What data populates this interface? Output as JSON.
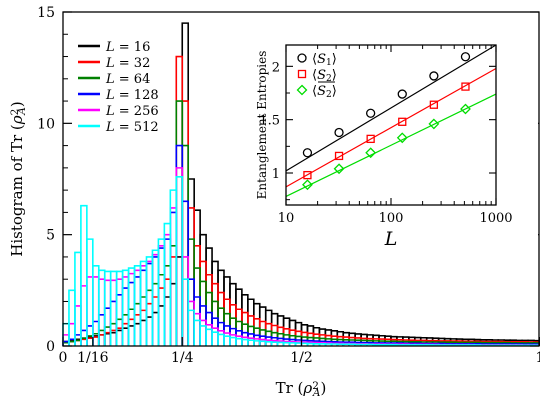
{
  "chart_data": [
    {
      "type": "histogram",
      "xlabel": "Tr (ρ_A²)",
      "ylabel": "Histogram of Tr (ρ_A²)",
      "xlim": [
        0,
        1
      ],
      "ylim": [
        0,
        15
      ],
      "x_ticks": [
        {
          "value": 0,
          "label": "0"
        },
        {
          "value": 0.0625,
          "label": "1/16"
        },
        {
          "value": 0.25,
          "label": "1/4"
        },
        {
          "value": 0.5,
          "label": "1/2"
        },
        {
          "value": 1,
          "label": "1"
        }
      ],
      "y_ticks": [
        0,
        5,
        10,
        15
      ],
      "legend_position": "top-left",
      "bin_width": 0.0125,
      "series": [
        {
          "name": "L = 16",
          "color": "#000000",
          "values": [
            0.2,
            0.25,
            0.3,
            0.35,
            0.4,
            0.45,
            0.5,
            0.55,
            0.6,
            0.7,
            0.8,
            0.9,
            1.0,
            1.15,
            1.3,
            1.5,
            1.8,
            2.2,
            2.8,
            4.0,
            14.5,
            7.5,
            6.1,
            5.0,
            4.4,
            3.8,
            3.4,
            3.1,
            2.8,
            2.55,
            2.3,
            2.1,
            1.9,
            1.75,
            1.6,
            1.45,
            1.35,
            1.25,
            1.15,
            1.05,
            0.95,
            0.9,
            0.82,
            0.76,
            0.72,
            0.68,
            0.64,
            0.6,
            0.57,
            0.54,
            0.52,
            0.5,
            0.48,
            0.46,
            0.44,
            0.42,
            0.41,
            0.4,
            0.39,
            0.38,
            0.37,
            0.36,
            0.35,
            0.34,
            0.33,
            0.32,
            0.31,
            0.3,
            0.3,
            0.29,
            0.28,
            0.28,
            0.27,
            0.27,
            0.26,
            0.26,
            0.25,
            0.25,
            0.25,
            0.24
          ]
        },
        {
          "name": "L = 32",
          "color": "#ff0000",
          "values": [
            0.15,
            0.2,
            0.25,
            0.3,
            0.35,
            0.4,
            0.5,
            0.6,
            0.7,
            0.8,
            1.0,
            1.2,
            1.4,
            1.6,
            1.9,
            2.2,
            2.6,
            3.0,
            4.0,
            13.0,
            11.0,
            6.2,
            4.5,
            3.8,
            3.2,
            2.8,
            2.4,
            2.1,
            1.85,
            1.65,
            1.5,
            1.35,
            1.22,
            1.1,
            1.0,
            0.92,
            0.84,
            0.77,
            0.71,
            0.66,
            0.61,
            0.57,
            0.53,
            0.5,
            0.47,
            0.44,
            0.42,
            0.4,
            0.38,
            0.36,
            0.34,
            0.33,
            0.32,
            0.31,
            0.3,
            0.29,
            0.28,
            0.27,
            0.26,
            0.25,
            0.25,
            0.24,
            0.24,
            0.23,
            0.23,
            0.22,
            0.22,
            0.21,
            0.21,
            0.21,
            0.2,
            0.2,
            0.2,
            0.2,
            0.19,
            0.19,
            0.19,
            0.19,
            0.18,
            0.18
          ]
        },
        {
          "name": "L = 64",
          "color": "#008000",
          "values": [
            0.15,
            0.2,
            0.25,
            0.35,
            0.45,
            0.55,
            0.7,
            0.85,
            1.0,
            1.2,
            1.4,
            1.65,
            1.9,
            2.2,
            2.5,
            2.8,
            3.2,
            3.6,
            4.5,
            11.0,
            9.0,
            4.8,
            3.5,
            2.9,
            2.4,
            2.0,
            1.7,
            1.45,
            1.25,
            1.1,
            0.98,
            0.88,
            0.8,
            0.72,
            0.66,
            0.6,
            0.55,
            0.5,
            0.46,
            0.43,
            0.4,
            0.38,
            0.36,
            0.34,
            0.32,
            0.3,
            0.29,
            0.28,
            0.27,
            0.26,
            0.25,
            0.24,
            0.23,
            0.22,
            0.21,
            0.21,
            0.2,
            0.2,
            0.19,
            0.19,
            0.18,
            0.18,
            0.18,
            0.17,
            0.17,
            0.17,
            0.16,
            0.16,
            0.16,
            0.16,
            0.15,
            0.15,
            0.15,
            0.15,
            0.15,
            0.14,
            0.14,
            0.14,
            0.14,
            0.14
          ]
        },
        {
          "name": "L = 128",
          "color": "#0000ff",
          "values": [
            0.2,
            0.3,
            0.5,
            0.7,
            0.9,
            1.1,
            1.4,
            1.7,
            2.0,
            2.3,
            2.6,
            2.85,
            3.1,
            3.4,
            3.7,
            4.0,
            4.4,
            4.8,
            6.0,
            9.0,
            6.5,
            3.0,
            2.2,
            1.8,
            1.5,
            1.25,
            1.05,
            0.9,
            0.78,
            0.68,
            0.6,
            0.54,
            0.48,
            0.44,
            0.4,
            0.37,
            0.34,
            0.31,
            0.29,
            0.27,
            0.25,
            0.24,
            0.22,
            0.21,
            0.2,
            0.19,
            0.18,
            0.17,
            0.17,
            0.16,
            0.15,
            0.15,
            0.14,
            0.14,
            0.13,
            0.13,
            0.13,
            0.12,
            0.12,
            0.12,
            0.11,
            0.11,
            0.11,
            0.11,
            0.1,
            0.1,
            0.1,
            0.1,
            0.1,
            0.1,
            0.09,
            0.09,
            0.09,
            0.09,
            0.09,
            0.09,
            0.09,
            0.08,
            0.08,
            0.08
          ]
        },
        {
          "name": "L = 256",
          "color": "#ff00ff",
          "values": [
            0.5,
            1.0,
            1.8,
            2.7,
            3.1,
            3.1,
            3.0,
            2.95,
            2.95,
            3.0,
            3.1,
            3.25,
            3.4,
            3.6,
            3.8,
            4.1,
            4.5,
            5.0,
            6.2,
            8.0,
            4.0,
            2.0,
            1.45,
            1.15,
            0.95,
            0.8,
            0.68,
            0.58,
            0.5,
            0.44,
            0.39,
            0.35,
            0.32,
            0.29,
            0.26,
            0.24,
            0.22,
            0.2,
            0.19,
            0.18,
            0.17,
            0.16,
            0.15,
            0.14,
            0.13,
            0.12,
            0.12,
            0.11,
            0.11,
            0.1,
            0.1,
            0.09,
            0.09,
            0.09,
            0.08,
            0.08,
            0.08,
            0.08,
            0.07,
            0.07,
            0.07,
            0.07,
            0.07,
            0.06,
            0.06,
            0.06,
            0.06,
            0.06,
            0.06,
            0.05,
            0.05,
            0.05,
            0.05,
            0.05,
            0.05,
            0.05,
            0.05,
            0.04,
            0.04,
            0.04
          ]
        },
        {
          "name": "L = 512",
          "color": "#00ffff",
          "values": [
            1.0,
            2.5,
            4.2,
            6.3,
            4.8,
            3.6,
            3.4,
            3.35,
            3.35,
            3.35,
            3.4,
            3.5,
            3.6,
            3.8,
            4.0,
            4.3,
            4.8,
            5.5,
            7.0,
            7.6,
            3.0,
            1.6,
            1.15,
            0.9,
            0.75,
            0.62,
            0.52,
            0.44,
            0.38,
            0.33,
            0.29,
            0.26,
            0.23,
            0.21,
            0.19,
            0.17,
            0.16,
            0.15,
            0.14,
            0.13,
            0.12,
            0.11,
            0.1,
            0.1,
            0.09,
            0.09,
            0.08,
            0.08,
            0.08,
            0.07,
            0.07,
            0.07,
            0.06,
            0.06,
            0.06,
            0.06,
            0.05,
            0.05,
            0.05,
            0.05,
            0.05,
            0.05,
            0.04,
            0.04,
            0.04,
            0.04,
            0.04,
            0.04,
            0.04,
            0.04,
            0.03,
            0.03,
            0.03,
            0.03,
            0.03,
            0.03,
            0.03,
            0.03,
            0.03,
            0.03
          ]
        }
      ]
    },
    {
      "type": "scatter",
      "xscale": "log",
      "xlabel": "L",
      "ylabel": "Entanglement Entropies",
      "xlim": [
        10,
        1000
      ],
      "ylim": [
        0.7,
        2.2
      ],
      "x_ticks": [
        10,
        100,
        1000
      ],
      "y_ticks": [
        1,
        1.5,
        2
      ],
      "legend_position": "top-left",
      "x": [
        16,
        32,
        64,
        128,
        256,
        512
      ],
      "series": [
        {
          "name": "⟨S₁⟩",
          "color": "#000000",
          "marker": "circle",
          "values": [
            1.19,
            1.38,
            1.56,
            1.74,
            1.91,
            2.09
          ],
          "fit": [
            [
              10,
              1.02
            ],
            [
              1000,
              2.2
            ]
          ]
        },
        {
          "name": "⟨S₂⟩",
          "color": "#ff0000",
          "marker": "square",
          "values": [
            0.98,
            1.16,
            1.32,
            1.48,
            1.64,
            1.81
          ],
          "fit": [
            [
              10,
              0.87
            ],
            [
              1000,
              1.98
            ]
          ]
        },
        {
          "name": "⟨S₂⟩‾",
          "color": "#00dd00",
          "marker": "diamond",
          "values": [
            0.89,
            1.04,
            1.19,
            1.33,
            1.46,
            1.6
          ],
          "fit": [
            [
              10,
              0.78
            ],
            [
              1000,
              1.74
            ]
          ]
        }
      ]
    }
  ]
}
